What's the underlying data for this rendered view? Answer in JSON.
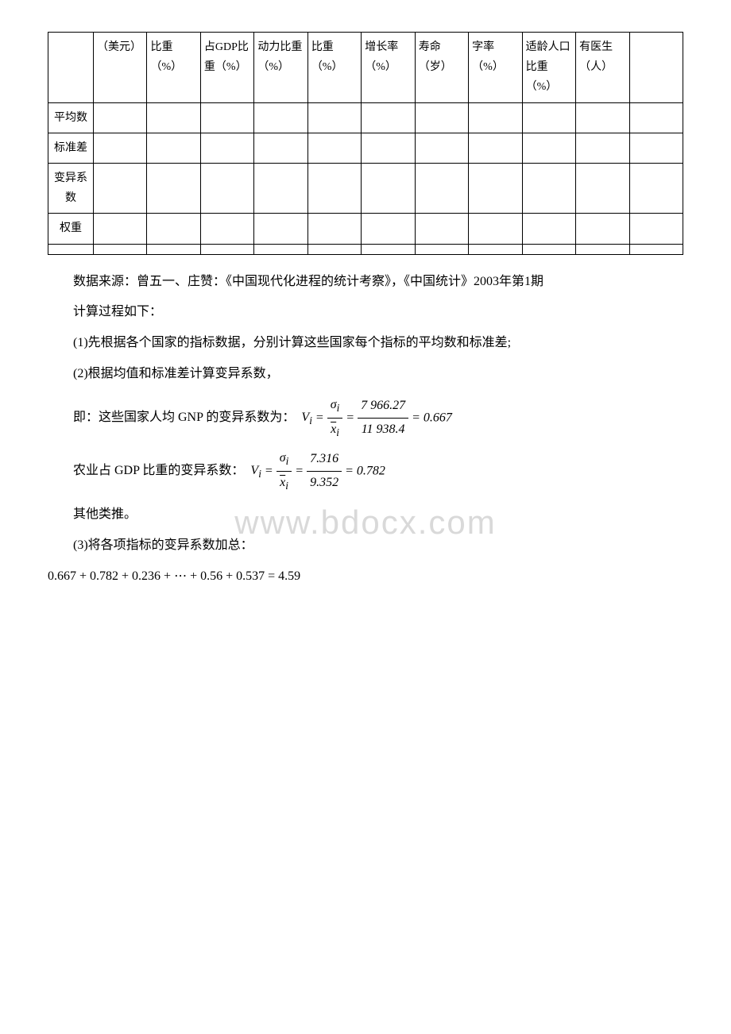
{
  "table": {
    "headers": [
      "（美元）",
      "比重（%）",
      "占GDP比重（%）",
      "动力比重（%）",
      "比重（%）",
      "增长率（%）",
      "寿命（岁）",
      "字率（%）",
      "适龄人口比重（%）",
      "有医生（人）",
      ""
    ],
    "row_labels": [
      "平均数",
      "标准差",
      "变异系数",
      "权重",
      ""
    ]
  },
  "source": "数据来源：曾五一、庄赞：《中国现代化进程的统计考察》，《中国统计》2003年第1期",
  "calc_intro": "计算过程如下：",
  "step1": "(1)先根据各个国家的指标数据，分别计算这些国家每个指标的平均数和标准差;",
  "step2": "(2)根据均值和标准差计算变异系数，",
  "gnp_label": "即：这些国家人均 GNP 的变异系数为：",
  "gnp_formula": {
    "lhs": "V",
    "sub": "i",
    "num1_top": "σᵢ",
    "num1_bot": "x̄ᵢ",
    "num2_top": "7 966.27",
    "num2_bot": "11 938.4",
    "result": "0.667"
  },
  "gdp_label": "农业占 GDP 比重的变异系数：",
  "gdp_formula": {
    "num2_top": "7.316",
    "num2_bot": "9.352",
    "result": "0.782"
  },
  "others": "其他类推。",
  "step3": "(3)将各项指标的变异系数加总：",
  "sum_formula": "0.667 + 0.782 + 0.236 + ⋯ + 0.56 + 0.537 = 4.59",
  "watermark": "www.bdocx.com"
}
